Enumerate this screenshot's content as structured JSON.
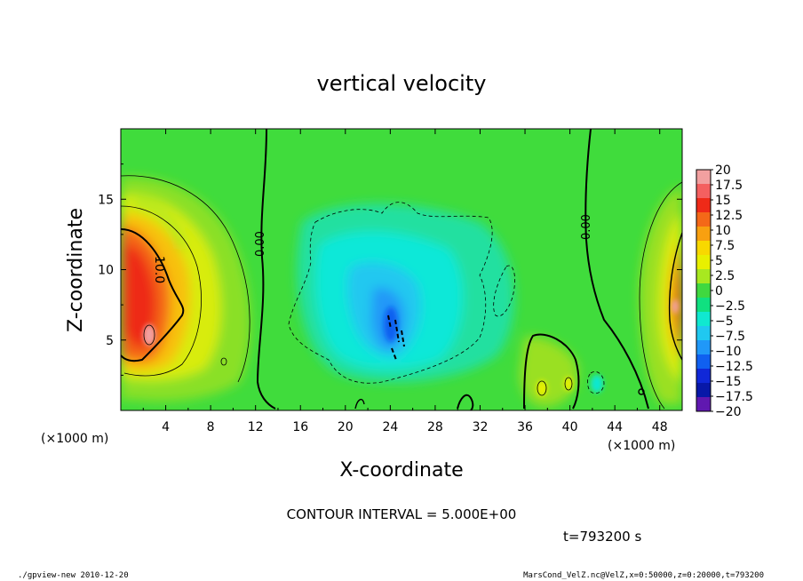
{
  "chart_data": {
    "type": "heatmap",
    "title": "vertical velocity",
    "xlabel": "X-coordinate",
    "ylabel": "Z-coordinate",
    "x_unit_label": "(×1000 m)",
    "x_ticks": [
      4,
      8,
      12,
      16,
      20,
      24,
      28,
      32,
      36,
      40,
      44,
      48
    ],
    "y_ticks": [
      5,
      10,
      15
    ],
    "xlim": [
      0,
      50
    ],
    "ylim": [
      0,
      20
    ],
    "colorbar_ticks": [
      "20",
      "17.5",
      "15",
      "12.5",
      "10",
      "7.5",
      "5",
      "2.5",
      "0",
      "−2.5",
      "−5",
      "−7.5",
      "−10",
      "−12.5",
      "−15",
      "−17.5",
      "−20"
    ],
    "colorbar_colors": [
      "#f2a0a0",
      "#f46060",
      "#ee2a18",
      "#f46818",
      "#f8a010",
      "#f8d800",
      "#e8f000",
      "#a8e820",
      "#40d840",
      "#10e080",
      "#10e8d0",
      "#20c8f0",
      "#2098f8",
      "#1060f0",
      "#1028d8",
      "#0818a8",
      "#6018b0"
    ],
    "contour_labels": [
      "10.0",
      "0.00",
      "0.00"
    ],
    "contour_interval_text": "CONTOUR INTERVAL = 5.000E+00",
    "time_text": "t=793200 s"
  },
  "footer": {
    "left": "./gpview-new   2010-12-20",
    "right": "MarsCond_VelZ.nc@VelZ,x=0:50000,z=0:20000,t=793200"
  }
}
